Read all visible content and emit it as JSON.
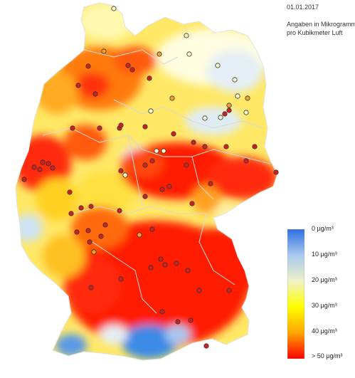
{
  "header": {
    "date": "01.01.2017",
    "unit_line1": "Angaben in Mikrogramm",
    "unit_line2": "pro Kubikmeter Luft"
  },
  "legend": {
    "stops": [
      {
        "label": "0 µg/m³",
        "value": 0,
        "color": "#2f6fe0"
      },
      {
        "label": "10 µg/m³",
        "value": 10,
        "color": "#a9c9f0"
      },
      {
        "label": "20 µg/m³",
        "value": 20,
        "color": "#eef2c6"
      },
      {
        "label": "30 µg/m³",
        "value": 30,
        "color": "#ffff00"
      },
      {
        "label": "40 µg/m³",
        "value": 40,
        "color": "#ffa500"
      },
      {
        "label": "> 50 µg/m³",
        "value": 50,
        "color": "#ff0000"
      }
    ]
  },
  "map": {
    "region": "Germany",
    "colors": {
      "very_high": "#ff1a00",
      "high": "#ff6a00",
      "medium": "#ffd400",
      "low": "#fffb9a",
      "clean": "#cfe3f3",
      "cleanest": "#3a8ae6",
      "border": "#d8d8d8",
      "station_high": "#cc2222",
      "station_mid": "#f0a030",
      "station_low": "#f6f6c8"
    }
  }
}
